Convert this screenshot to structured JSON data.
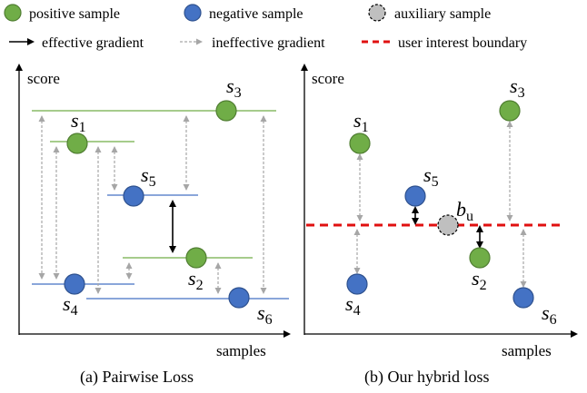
{
  "legend": {
    "positive": "positive sample",
    "negative": "negative sample",
    "auxiliary": "auxiliary sample",
    "effective": "effective gradient",
    "ineffective": "ineffective gradient",
    "boundary": "user interest boundary"
  },
  "panel_a": {
    "ylabel": "score",
    "xlabel": "samples",
    "caption": "(a) Pairwise Loss",
    "samples": [
      {
        "name": "s",
        "sub": "1",
        "type": "positive"
      },
      {
        "name": "s",
        "sub": "2",
        "type": "positive"
      },
      {
        "name": "s",
        "sub": "3",
        "type": "positive"
      },
      {
        "name": "s",
        "sub": "4",
        "type": "negative"
      },
      {
        "name": "s",
        "sub": "5",
        "type": "negative"
      },
      {
        "name": "s",
        "sub": "6",
        "type": "negative"
      }
    ]
  },
  "panel_b": {
    "ylabel": "score",
    "xlabel": "samples",
    "caption": "(b) Our hybrid loss",
    "aux": {
      "name": "b",
      "sub": "u"
    }
  },
  "colors": {
    "positive_fill": "#70ad47",
    "positive_stroke": "#507e32",
    "negative_fill": "#4472c4",
    "negative_stroke": "#2f528f",
    "auxiliary_fill": "#bfbfbf",
    "boundary": "#e01010",
    "ineffective": "#a6a6a6"
  }
}
